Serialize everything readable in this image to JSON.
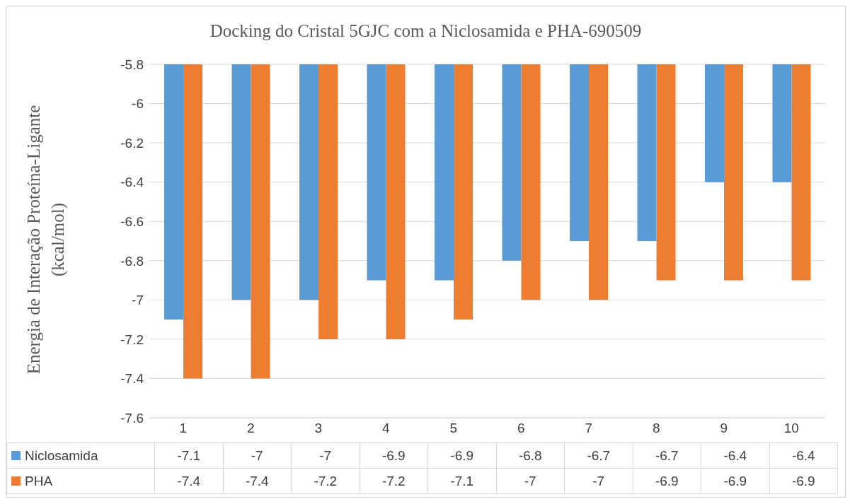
{
  "chart_data": {
    "type": "bar",
    "title": "Docking do Cristal 5GJC com a Niclosamida e PHA-690509",
    "ylabel": "Energia de Interação Proteína-Ligante (kcal/mol)",
    "categories": [
      "1",
      "2",
      "3",
      "4",
      "5",
      "6",
      "7",
      "8",
      "9",
      "10"
    ],
    "series": [
      {
        "name": "Niclosamida",
        "color": "#5b9bd5",
        "values": [
          -7.1,
          -7,
          -7,
          -6.9,
          -6.9,
          -6.8,
          -6.7,
          -6.7,
          -6.4,
          -6.4
        ]
      },
      {
        "name": "PHA",
        "color": "#ed7d31",
        "values": [
          -7.4,
          -7.4,
          -7.2,
          -7.2,
          -7.1,
          -7,
          -7,
          -6.9,
          -6.9,
          -6.9
        ]
      }
    ],
    "ylim": [
      -7.6,
      -5.8
    ],
    "yticks": [
      -7.6,
      -7.4,
      -7.2,
      -7,
      -6.8,
      -6.6,
      -6.4,
      -6.2,
      -6,
      -5.8
    ],
    "grid": "y",
    "legend": "bottom",
    "data_labels": true
  }
}
